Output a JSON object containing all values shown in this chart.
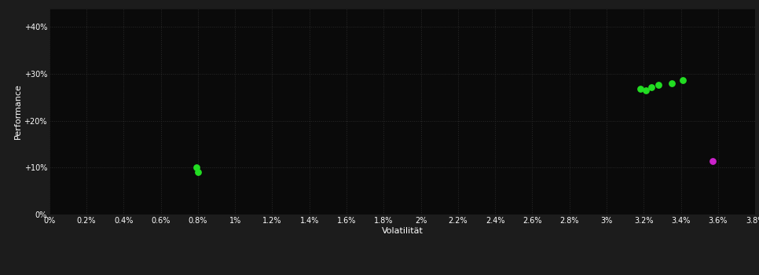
{
  "background_color": "#1c1c1c",
  "plot_bg_color": "#0a0a0a",
  "grid_color": "#2a2a2a",
  "text_color": "#ffffff",
  "xlabel": "Volatilität",
  "ylabel": "Performance",
  "xlim": [
    0.0,
    0.038
  ],
  "ylim": [
    0.0,
    0.44
  ],
  "xtick_labels": [
    "0%",
    "0.2%",
    "0.4%",
    "0.6%",
    "0.8%",
    "1%",
    "1.2%",
    "1.4%",
    "1.6%",
    "1.8%",
    "2%",
    "2.2%",
    "2.4%",
    "2.6%",
    "2.8%",
    "3%",
    "3.2%",
    "3.4%",
    "3.6%",
    "3.8%"
  ],
  "xtick_vals": [
    0.0,
    0.002,
    0.004,
    0.006,
    0.008,
    0.01,
    0.012,
    0.014,
    0.016,
    0.018,
    0.02,
    0.022,
    0.024,
    0.026,
    0.028,
    0.03,
    0.032,
    0.034,
    0.036,
    0.038
  ],
  "ytick_labels": [
    "0%",
    "+10%",
    "+20%",
    "+30%",
    "+40%"
  ],
  "ytick_vals": [
    0.0,
    0.1,
    0.2,
    0.3,
    0.4
  ],
  "green_points": [
    [
      0.0079,
      0.101
    ],
    [
      0.008,
      0.091
    ],
    [
      0.0318,
      0.269
    ],
    [
      0.0321,
      0.265
    ],
    [
      0.0324,
      0.272
    ],
    [
      0.0328,
      0.276
    ],
    [
      0.0335,
      0.28
    ],
    [
      0.0341,
      0.287
    ]
  ],
  "magenta_points": [
    [
      0.0357,
      0.114
    ]
  ],
  "green_color": "#22dd22",
  "magenta_color": "#cc22cc",
  "marker_size": 28
}
